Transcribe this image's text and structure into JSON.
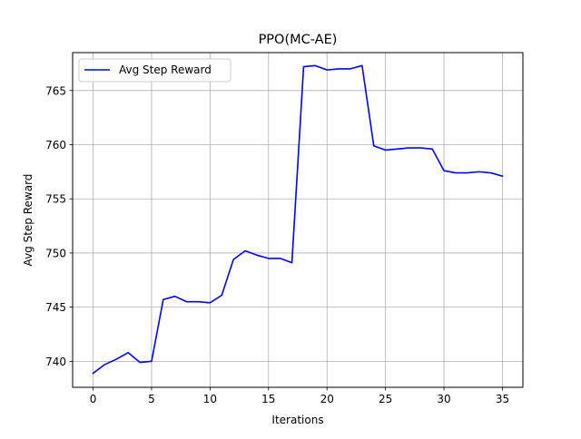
{
  "chart_data": {
    "type": "line",
    "title": "PPO(MC-AE)",
    "xlabel": "Iterations",
    "ylabel": "Avg Step Reward",
    "xlim": [
      -1.75,
      36.75
    ],
    "ylim": [
      737.6,
      768.5
    ],
    "xticks": [
      0,
      5,
      10,
      15,
      20,
      25,
      30,
      35
    ],
    "yticks": [
      740,
      745,
      750,
      755,
      760,
      765
    ],
    "grid": true,
    "legend": {
      "position": "top-left"
    },
    "colors": {
      "series": "#0000ff",
      "grid": "#b0b0b0",
      "axes": "#000000"
    },
    "series": [
      {
        "name": "Avg Step Reward",
        "x": [
          0,
          1,
          2,
          3,
          4,
          5,
          6,
          7,
          8,
          9,
          10,
          11,
          12,
          13,
          14,
          15,
          16,
          17,
          18,
          19,
          20,
          21,
          22,
          23,
          24,
          25,
          26,
          27,
          28,
          29,
          30,
          31,
          32,
          33,
          34,
          35
        ],
        "values": [
          738.9,
          739.7,
          740.2,
          740.8,
          739.9,
          740.0,
          745.7,
          746.0,
          745.5,
          745.5,
          745.4,
          746.1,
          749.4,
          750.2,
          749.8,
          749.5,
          749.5,
          749.1,
          767.2,
          767.3,
          766.9,
          767.0,
          767.0,
          767.3,
          759.9,
          759.5,
          759.6,
          759.7,
          759.7,
          759.6,
          757.6,
          757.4,
          757.4,
          757.5,
          757.4,
          757.1
        ]
      }
    ]
  }
}
